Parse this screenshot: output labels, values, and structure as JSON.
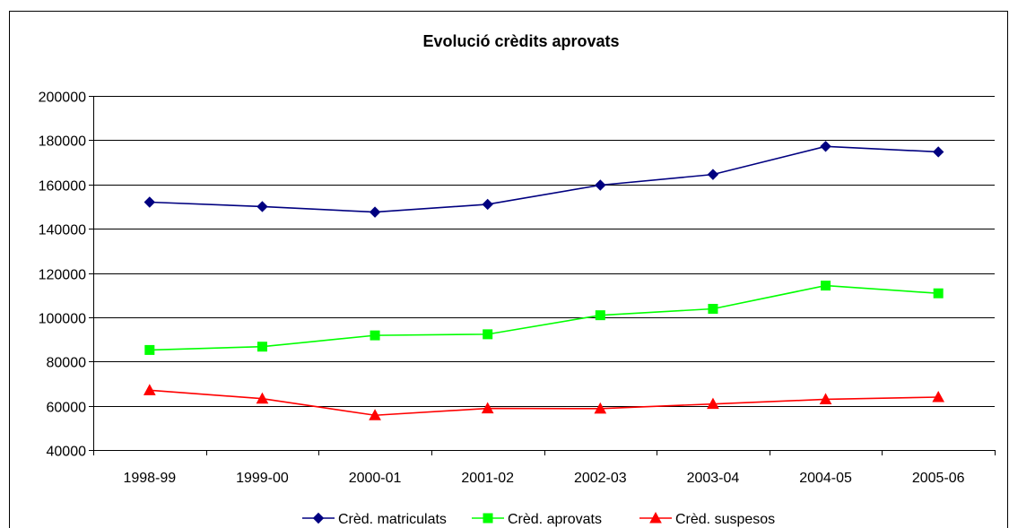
{
  "chart_data": {
    "type": "line",
    "title": "Evolució crèdits aprovats",
    "categories": [
      "1998-99",
      "1999-00",
      "2000-01",
      "2001-02",
      "2002-03",
      "2003-04",
      "2004-05",
      "2005-06"
    ],
    "ylim": [
      40000,
      200000
    ],
    "yticks": [
      40000,
      60000,
      80000,
      100000,
      120000,
      140000,
      160000,
      180000,
      200000
    ],
    "grid": true,
    "legend_position": "bottom",
    "series": [
      {
        "name": "Crèd. matriculats",
        "color": "#000080",
        "marker": "diamond",
        "values": [
          152000,
          150000,
          147500,
          151000,
          159700,
          164500,
          177200,
          174700
        ]
      },
      {
        "name": "Crèd. aprovats",
        "color": "#00ff00",
        "marker": "square",
        "values": [
          85200,
          86700,
          91800,
          92300,
          100900,
          103800,
          114300,
          110800
        ]
      },
      {
        "name": "Crèd. suspesos",
        "color": "#ff0000",
        "marker": "triangle",
        "values": [
          67000,
          63200,
          55700,
          58800,
          58700,
          60800,
          62900,
          63900
        ]
      }
    ]
  }
}
